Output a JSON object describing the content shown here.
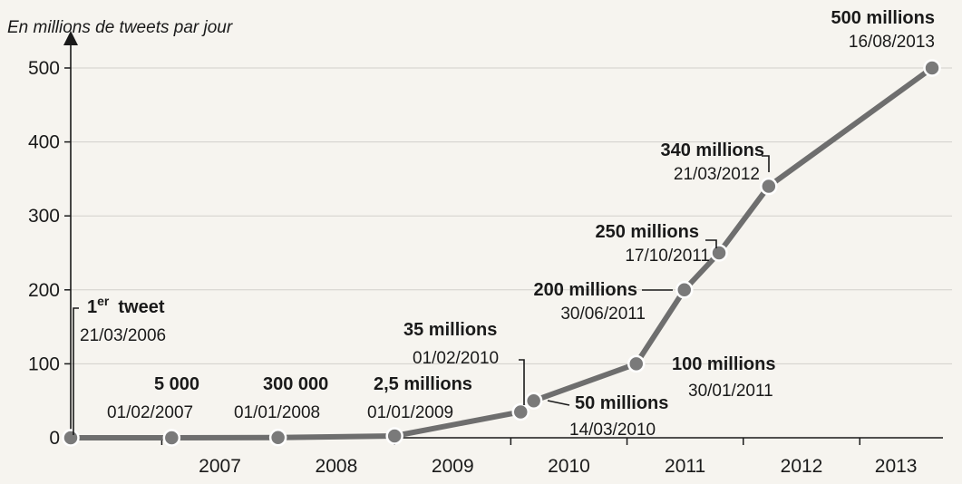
{
  "chart_data": {
    "type": "line",
    "ylabel": "En millions de tweets par jour",
    "ylim": [
      0,
      500
    ],
    "yticks": [
      0,
      100,
      200,
      300,
      400,
      500
    ],
    "xlim": [
      "2006-03-21",
      "2013-08-16"
    ],
    "xticks": [
      "2007",
      "2008",
      "2009",
      "2010",
      "2011",
      "2012",
      "2013"
    ],
    "grid": true,
    "line_color": "#6e6e6e",
    "marker_color": "#7a7a7a",
    "series": [
      {
        "points": [
          {
            "x": "2006-03-21",
            "y": 0,
            "value_label": "1er tweet",
            "date_label": "21/03/2006"
          },
          {
            "x": "2007-02-01",
            "y": 0.005,
            "value_label": "5 000",
            "date_label": "01/02/2007"
          },
          {
            "x": "2008-01-01",
            "y": 0.3,
            "value_label": "300 000",
            "date_label": "01/01/2008"
          },
          {
            "x": "2009-01-01",
            "y": 2.5,
            "value_label": "2,5 millions",
            "date_label": "01/01/2009"
          },
          {
            "x": "2010-02-01",
            "y": 35,
            "value_label": "35 millions",
            "date_label": "01/02/2010"
          },
          {
            "x": "2010-03-14",
            "y": 50,
            "value_label": "50 millions",
            "date_label": "14/03/2010"
          },
          {
            "x": "2011-01-30",
            "y": 100,
            "value_label": "100 millions",
            "date_label": "30/01/2011"
          },
          {
            "x": "2011-06-30",
            "y": 200,
            "value_label": "200 millions",
            "date_label": "30/06/2011"
          },
          {
            "x": "2011-10-17",
            "y": 250,
            "value_label": "250 millions",
            "date_label": "17/10/2011"
          },
          {
            "x": "2012-03-21",
            "y": 340,
            "value_label": "340 millions",
            "date_label": "21/03/2012"
          },
          {
            "x": "2013-08-16",
            "y": 500,
            "value_label": "500 millions",
            "date_label": "16/08/2013"
          }
        ]
      }
    ]
  }
}
